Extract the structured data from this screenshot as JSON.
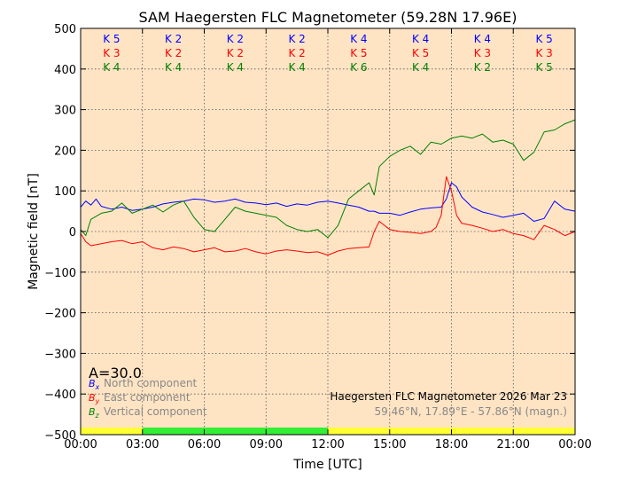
{
  "chart_data": {
    "type": "line",
    "title": "SAM Haegersten FLC Magnetometer (59.28N 17.96E)",
    "xlabel": "Time [UTC]",
    "ylabel": "Magnetic field [nT]",
    "xlim": [
      0,
      24
    ],
    "ylim": [
      -500,
      500
    ],
    "x_ticks": [
      0,
      3,
      6,
      9,
      12,
      15,
      18,
      21,
      24
    ],
    "x_tick_labels": [
      "00:00",
      "03:00",
      "06:00",
      "09:00",
      "12:00",
      "15:00",
      "18:00",
      "21:00",
      "00:00"
    ],
    "y_ticks": [
      -500,
      -400,
      -300,
      -200,
      -100,
      0,
      100,
      200,
      300,
      400,
      500
    ],
    "y_tick_labels": [
      "−500",
      "−400",
      "−300",
      "−200",
      "−100",
      "0",
      "100",
      "200",
      "300",
      "400",
      "500"
    ],
    "grid": true,
    "background": "#ffe4c4",
    "k_index": {
      "x_centers": [
        1.5,
        4.5,
        7.5,
        10.5,
        13.5,
        16.5,
        19.5,
        22.5
      ],
      "rows": [
        {
          "color": "#0000ff",
          "labels": [
            "K 5",
            "K 2",
            "K 2",
            "K 2",
            "K 4",
            "K 4",
            "K 4",
            "K 5"
          ]
        },
        {
          "color": "#ff0000",
          "labels": [
            "K 3",
            "K 2",
            "K 2",
            "K 2",
            "K 5",
            "K 5",
            "K 3",
            "K 3"
          ]
        },
        {
          "color": "#008000",
          "labels": [
            "K 4",
            "K 4",
            "K 4",
            "K 4",
            "K 6",
            "K 4",
            "K 2",
            "K 5"
          ]
        }
      ]
    },
    "daylight_bar": [
      {
        "from": 0,
        "to": 3,
        "color": "#ffff33"
      },
      {
        "from": 3,
        "to": 12,
        "color": "#33ee33"
      },
      {
        "from": 12,
        "to": 24,
        "color": "#ffff33"
      }
    ],
    "activity_label": "A=30.0",
    "legend": [
      {
        "symbol": "B",
        "sub": "x",
        "text": "North component",
        "color": "#0000ff"
      },
      {
        "symbol": "B",
        "sub": "y",
        "text": "East component",
        "color": "#ff0000"
      },
      {
        "symbol": "B",
        "sub": "z",
        "text": "Vertical component",
        "color": "#008000"
      }
    ],
    "station_info": "Haegersten FLC Magnetometer 2026 Mar 23",
    "coords_info": "59.46°N, 17.89°E - 57.86°N (magn.)",
    "series": [
      {
        "name": "North component",
        "color": "#0000ff",
        "x": [
          0,
          0.25,
          0.5,
          0.75,
          1,
          1.5,
          2,
          2.5,
          3,
          3.5,
          4,
          4.5,
          5,
          5.5,
          6,
          6.5,
          7,
          7.5,
          8,
          8.5,
          9,
          9.5,
          10,
          10.5,
          11,
          11.5,
          12,
          12.5,
          13,
          13.5,
          14,
          14.25,
          14.5,
          15,
          15.5,
          16,
          16.5,
          17,
          17.5,
          17.75,
          18,
          18.25,
          18.5,
          19,
          19.5,
          20,
          20.5,
          21,
          21.5,
          22,
          22.5,
          23,
          23.5,
          24
        ],
        "y": [
          60,
          75,
          65,
          80,
          62,
          55,
          60,
          52,
          55,
          60,
          68,
          72,
          75,
          80,
          78,
          72,
          75,
          80,
          72,
          70,
          66,
          70,
          62,
          68,
          65,
          72,
          75,
          70,
          65,
          60,
          50,
          50,
          45,
          45,
          40,
          48,
          55,
          58,
          60,
          80,
          120,
          110,
          85,
          60,
          48,
          42,
          35,
          40,
          45,
          25,
          32,
          75,
          55,
          50
        ]
      },
      {
        "name": "East component",
        "color": "#ff0000",
        "x": [
          0,
          0.25,
          0.5,
          1,
          1.5,
          2,
          2.5,
          3,
          3.5,
          4,
          4.5,
          5,
          5.5,
          6,
          6.5,
          7,
          7.5,
          8,
          8.5,
          9,
          9.5,
          10,
          10.5,
          11,
          11.5,
          12,
          12.5,
          13,
          13.5,
          14,
          14.25,
          14.5,
          15,
          15.5,
          16,
          16.5,
          17,
          17.25,
          17.5,
          17.75,
          18,
          18.25,
          18.5,
          19,
          19.5,
          20,
          20.5,
          21,
          21.5,
          22,
          22.5,
          23,
          23.5,
          24
        ],
        "y": [
          -5,
          -25,
          -35,
          -30,
          -25,
          -22,
          -30,
          -25,
          -40,
          -45,
          -38,
          -42,
          -50,
          -45,
          -40,
          -50,
          -48,
          -42,
          -50,
          -55,
          -48,
          -45,
          -48,
          -52,
          -50,
          -58,
          -48,
          -42,
          -40,
          -38,
          0,
          25,
          5,
          0,
          -2,
          -5,
          0,
          10,
          40,
          135,
          100,
          40,
          20,
          15,
          8,
          0,
          5,
          -5,
          -10,
          -20,
          15,
          5,
          -10,
          0
        ]
      },
      {
        "name": "Vertical component",
        "color": "#008000",
        "x": [
          0,
          0.25,
          0.5,
          1,
          1.5,
          2,
          2.5,
          3,
          3.5,
          4,
          4.5,
          5,
          5.5,
          6,
          6.5,
          7,
          7.5,
          8,
          8.5,
          9,
          9.5,
          10,
          10.5,
          11,
          11.5,
          12,
          12.5,
          13,
          13.5,
          14,
          14.25,
          14.5,
          15,
          15.5,
          16,
          16.5,
          17,
          17.5,
          18,
          18.5,
          19,
          19.5,
          20,
          20.5,
          21,
          21.5,
          22,
          22.5,
          23,
          23.5,
          24
        ],
        "y": [
          5,
          -10,
          30,
          45,
          50,
          70,
          45,
          55,
          65,
          48,
          65,
          75,
          35,
          5,
          0,
          30,
          60,
          50,
          45,
          40,
          35,
          15,
          5,
          0,
          5,
          -15,
          15,
          80,
          100,
          120,
          90,
          160,
          185,
          200,
          210,
          190,
          220,
          215,
          230,
          235,
          230,
          240,
          220,
          225,
          215,
          175,
          195,
          245,
          250,
          265,
          275
        ]
      }
    ]
  }
}
